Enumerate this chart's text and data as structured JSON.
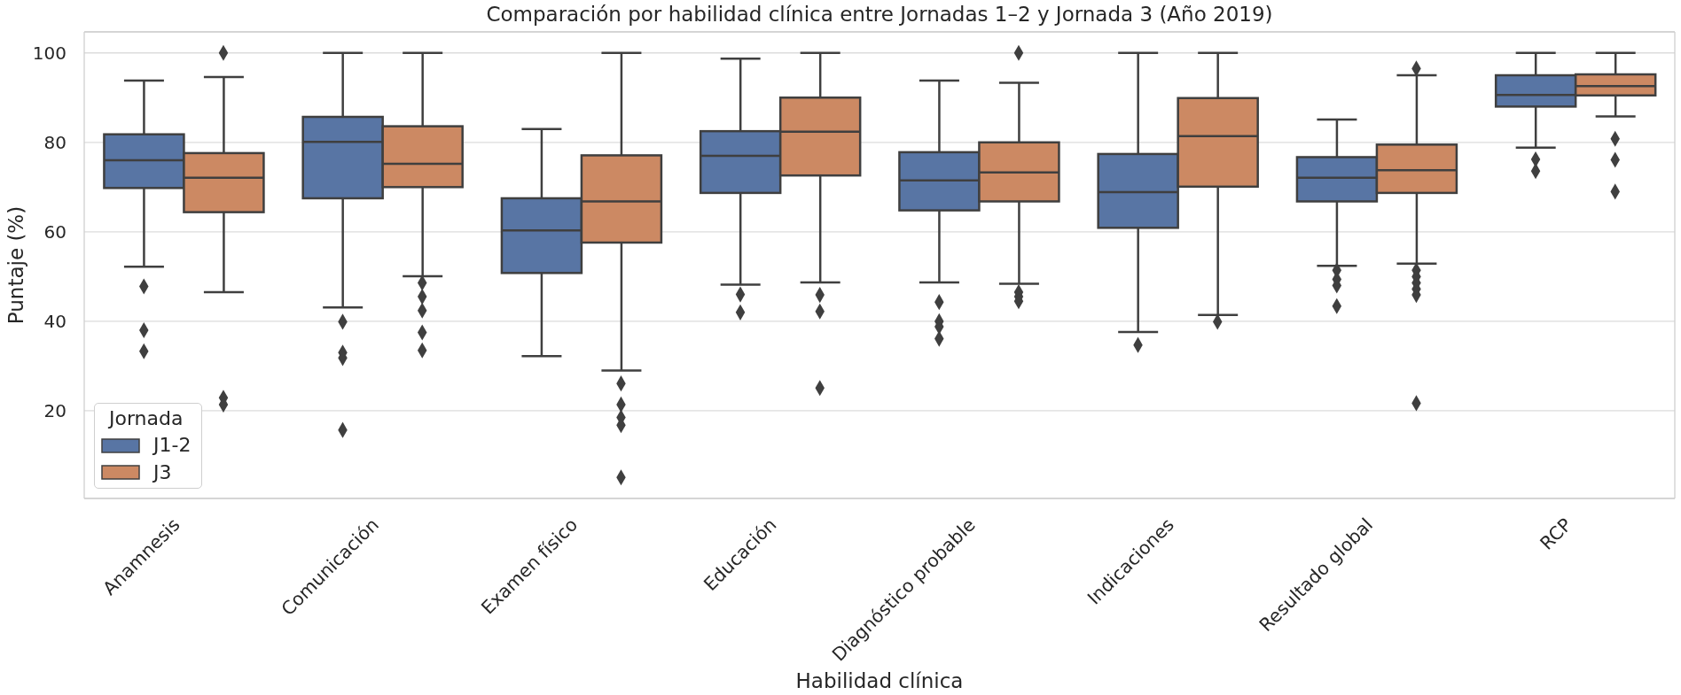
{
  "chart_data": {
    "type": "box",
    "title": "Comparación por habilidad clínica entre Jornadas 1–2 y Jornada 3 (Año 2019)",
    "xlabel": "Habilidad clínica",
    "ylabel": "Puntaje (%)",
    "legend_title": "Jornada",
    "categories": [
      "Anamnesis",
      "Comunicación",
      "Examen físico",
      "Educación",
      "Diagnóstico probable",
      "Indicaciones",
      "Resultado global",
      "RCP"
    ],
    "series": [
      {
        "name": "J1-2",
        "color": "#5875a4",
        "boxes": [
          {
            "low": 52.2,
            "q1": 69.8,
            "median": 76.0,
            "q3": 81.8,
            "high": 93.8,
            "outliers": [
              47.8,
              38.0,
              33.3
            ]
          },
          {
            "low": 43.1,
            "q1": 67.5,
            "median": 80.1,
            "q3": 85.7,
            "high": 100,
            "outliers": [
              39.9,
              33.0,
              31.8,
              15.7
            ]
          },
          {
            "low": 32.2,
            "q1": 50.8,
            "median": 60.3,
            "q3": 67.5,
            "high": 83.0
          },
          {
            "low": 48.2,
            "q1": 68.7,
            "median": 77.0,
            "q3": 82.5,
            "high": 98.7,
            "outliers": [
              46.0,
              42.0
            ]
          },
          {
            "low": 48.7,
            "q1": 64.8,
            "median": 71.5,
            "q3": 77.8,
            "high": 93.8,
            "outliers": [
              44.3,
              40.0,
              38.8,
              36.1
            ]
          },
          {
            "low": 37.6,
            "q1": 60.9,
            "median": 68.9,
            "q3": 77.4,
            "high": 100,
            "outliers": [
              34.7
            ]
          },
          {
            "low": 52.4,
            "q1": 66.8,
            "median": 72.1,
            "q3": 76.7,
            "high": 85.1,
            "outliers": [
              51.4,
              49.4,
              48.0,
              43.4
            ]
          },
          {
            "low": 78.8,
            "q1": 88.0,
            "median": 90.6,
            "q3": 95.0,
            "high": 100,
            "outliers": [
              76.2,
              73.6
            ]
          }
        ]
      },
      {
        "name": "J3",
        "color": "#cc8963",
        "boxes": [
          {
            "low": 46.5,
            "q1": 64.4,
            "median": 72.1,
            "q3": 77.6,
            "high": 94.6,
            "outliers": [
              100,
              22.9,
              21.4
            ]
          },
          {
            "low": 50.1,
            "q1": 70.0,
            "median": 75.2,
            "q3": 83.6,
            "high": 100,
            "outliers": [
              48.6,
              45.5,
              42.4,
              37.5,
              33.5
            ]
          },
          {
            "low": 29.0,
            "q1": 57.6,
            "median": 66.8,
            "q3": 77.1,
            "high": 100,
            "outliers": [
              26.1,
              21.4,
              18.5,
              16.8,
              5.1
            ]
          },
          {
            "low": 48.7,
            "q1": 72.6,
            "median": 82.4,
            "q3": 90.0,
            "high": 100,
            "outliers": [
              45.9,
              42.2,
              25.1
            ]
          },
          {
            "low": 48.4,
            "q1": 66.8,
            "median": 73.3,
            "q3": 80.0,
            "high": 93.3,
            "outliers": [
              100,
              46.5,
              45.5,
              44.5
            ]
          },
          {
            "low": 41.4,
            "q1": 70.1,
            "median": 81.4,
            "q3": 89.9,
            "high": 100,
            "outliers": [
              39.9
            ]
          },
          {
            "low": 52.9,
            "q1": 68.7,
            "median": 73.8,
            "q3": 79.5,
            "high": 95.0,
            "outliers": [
              96.5,
              51.4,
              50.0,
              48.6,
              47.2,
              45.9,
              21.7
            ]
          },
          {
            "low": 85.8,
            "q1": 90.5,
            "median": 92.6,
            "q3": 95.2,
            "high": 100,
            "outliers": [
              80.8,
              76.1,
              69.0
            ]
          }
        ]
      }
    ],
    "ylim": [
      0.4,
      104.7
    ],
    "yticks": [
      20,
      40,
      60,
      80,
      100
    ],
    "grid": "y",
    "legend": "bottom left",
    "marker": "diamond"
  }
}
